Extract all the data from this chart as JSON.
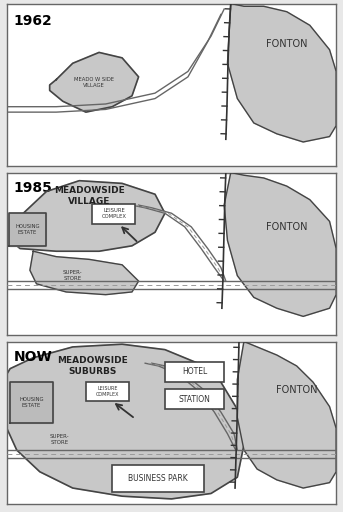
{
  "bg_color": "#f0f0f0",
  "white": "#ffffff",
  "gray_fill": "#c8c8c8",
  "gray_dark": "#aaaaaa",
  "border_color": "#444444",
  "road_color": "#555555",
  "years": [
    "1962",
    "1985",
    "NOW"
  ],
  "fonton_label": "FONTON"
}
